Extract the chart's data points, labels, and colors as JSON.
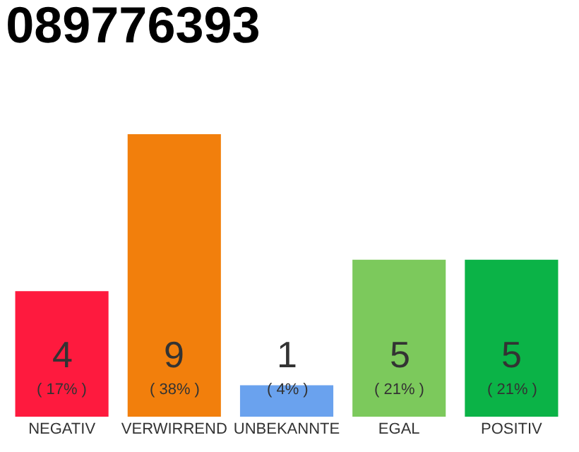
{
  "chart_data": {
    "type": "bar",
    "title": "089776393",
    "categories": [
      "NEGATIV",
      "VERWIRREND",
      "UNBEKANNTE",
      "EGAL",
      "POSITIV"
    ],
    "values": [
      4,
      9,
      1,
      5,
      5
    ],
    "colors": [
      "#fe1a3e",
      "#f27f0c",
      "#6aa2ee",
      "#7cc95c",
      "#0bb347"
    ],
    "value_labels": [
      "4\n( 17% )",
      "9\n( 38% )",
      "1\n( 4% )",
      "5\n( 21% )",
      "5\n( 21% )"
    ],
    "ylim": [
      0,
      9
    ],
    "tick_labels": "x",
    "legend": false
  }
}
